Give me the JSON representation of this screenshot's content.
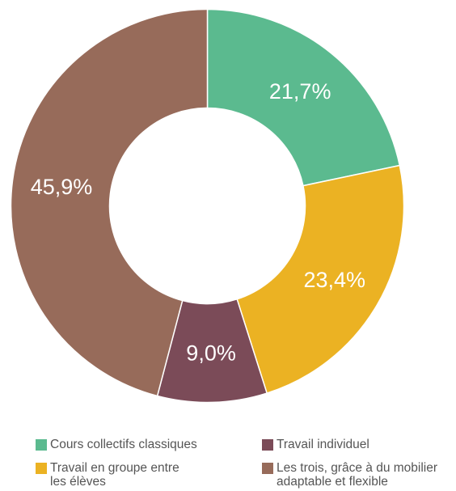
{
  "chart_data": {
    "type": "pie",
    "donut": true,
    "slices": [
      {
        "label": "Cours collectifs classiques",
        "value": 21.7,
        "display": "21,7%",
        "color": "#5bba8f"
      },
      {
        "label": "Travail en groupe entre\nles élèves",
        "value": 23.4,
        "display": "23,4%",
        "color": "#ebb223"
      },
      {
        "label": "Travail individuel",
        "value": 9.0,
        "display": "9,0%",
        "color": "#7b4b58"
      },
      {
        "label": "Les trois, grâce à du mobilier\nadaptable et flexible",
        "value": 45.9,
        "display": "45,9%",
        "color": "#976b5a"
      }
    ],
    "legend_order": [
      0,
      2,
      1,
      3
    ],
    "legend_placement": "bottom"
  }
}
